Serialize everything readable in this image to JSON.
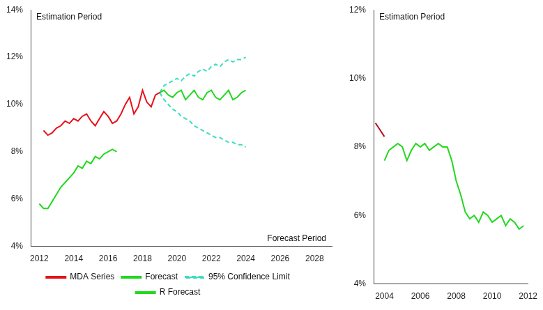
{
  "chart_data": [
    {
      "type": "line",
      "annotations": [
        "Estimation Period",
        "Forecast Period"
      ],
      "xlim": [
        2011.5,
        2029
      ],
      "xticks": [
        2012,
        2014,
        2016,
        2018,
        2020,
        2022,
        2024,
        2026,
        2028
      ],
      "ylim": [
        4,
        14
      ],
      "yticks": [
        {
          "value": 4,
          "label": "4%"
        },
        {
          "value": 6,
          "label": "6%"
        },
        {
          "value": 8,
          "label": "8%"
        },
        {
          "value": 10,
          "label": "10%"
        },
        {
          "value": 12,
          "label": "12%"
        },
        {
          "value": 14,
          "label": "14%"
        }
      ],
      "grid": false,
      "legend": "bottom",
      "series": [
        {
          "name": "MDA Series",
          "color": "#e8101a",
          "line_style": "solid",
          "x": [
            2012.25,
            2012.5,
            2012.75,
            2013,
            2013.25,
            2013.5,
            2013.75,
            2014,
            2014.25,
            2014.5,
            2014.75,
            2015,
            2015.25,
            2015.5,
            2015.75,
            2016,
            2016.25,
            2016.5,
            2016.75,
            2017,
            2017.25,
            2017.5,
            2017.75,
            2018,
            2018.25,
            2018.5,
            2018.75,
            2019
          ],
          "values": [
            8.9,
            8.7,
            8.8,
            9.0,
            9.1,
            9.3,
            9.2,
            9.4,
            9.3,
            9.5,
            9.6,
            9.3,
            9.1,
            9.4,
            9.7,
            9.5,
            9.2,
            9.3,
            9.6,
            10.0,
            10.3,
            9.6,
            9.9,
            10.6,
            10.1,
            9.9,
            10.4,
            10.5
          ]
        },
        {
          "name": "Forecast",
          "color": "#22d81e",
          "line_style": "solid",
          "x": [
            2019,
            2019.25,
            2019.5,
            2019.75,
            2020,
            2020.25,
            2020.5,
            2020.75,
            2021,
            2021.25,
            2021.5,
            2021.75,
            2022,
            2022.25,
            2022.5,
            2022.75,
            2023,
            2023.25,
            2023.5,
            2023.75,
            2024
          ],
          "values": [
            10.5,
            10.6,
            10.4,
            10.3,
            10.5,
            10.6,
            10.2,
            10.4,
            10.6,
            10.3,
            10.2,
            10.5,
            10.6,
            10.3,
            10.2,
            10.4,
            10.6,
            10.2,
            10.3,
            10.5,
            10.6
          ]
        },
        {
          "name": "95% Confidence Limit",
          "color": "#3fdcc0",
          "line_style": "dashed",
          "x": [
            2019,
            2019.25,
            2019.5,
            2019.75,
            2020,
            2020.25,
            2020.5,
            2020.75,
            2021,
            2021.25,
            2021.5,
            2021.75,
            2022,
            2022.25,
            2022.5,
            2022.75,
            2023,
            2023.25,
            2023.5,
            2023.75,
            2024
          ],
          "values": [
            10.5,
            10.8,
            10.9,
            11.0,
            11.1,
            11.0,
            11.2,
            11.3,
            11.2,
            11.4,
            11.5,
            11.4,
            11.6,
            11.7,
            11.6,
            11.8,
            11.9,
            11.8,
            11.9,
            11.9,
            12.0
          ]
        },
        {
          "color": "#3fdcc0",
          "line_style": "dashed",
          "x": [
            2019,
            2019.25,
            2019.5,
            2019.75,
            2020,
            2020.25,
            2020.5,
            2020.75,
            2021,
            2021.25,
            2021.5,
            2021.75,
            2022,
            2022.25,
            2022.5,
            2022.75,
            2023,
            2023.25,
            2023.5,
            2023.75,
            2024
          ],
          "values": [
            10.5,
            10.2,
            10.0,
            9.8,
            9.7,
            9.5,
            9.4,
            9.3,
            9.1,
            9.0,
            8.9,
            8.8,
            8.7,
            8.6,
            8.6,
            8.5,
            8.4,
            8.4,
            8.3,
            8.3,
            8.2
          ]
        },
        {
          "name": "R Forecast",
          "color": "#22d81e",
          "line_style": "solid",
          "x": [
            2012,
            2012.25,
            2012.5,
            2012.75,
            2013,
            2013.25,
            2013.5,
            2013.75,
            2014,
            2014.25,
            2014.5,
            2014.75,
            2015,
            2015.25,
            2015.5,
            2015.75,
            2016,
            2016.25,
            2016.5
          ],
          "values": [
            5.8,
            5.6,
            5.6,
            5.9,
            6.2,
            6.5,
            6.7,
            6.9,
            7.1,
            7.4,
            7.3,
            7.6,
            7.5,
            7.8,
            7.7,
            7.9,
            8.0,
            8.1,
            8.0
          ]
        }
      ]
    },
    {
      "type": "line",
      "annotations": [
        "Estimation Period"
      ],
      "xlim": [
        2003.4,
        2012
      ],
      "xticks": [
        2004,
        2006,
        2008,
        2010,
        2012
      ],
      "ylim": [
        4,
        12
      ],
      "yticks": [
        {
          "value": 4,
          "label": "4%"
        },
        {
          "value": 6,
          "label": "6%"
        },
        {
          "value": 8,
          "label": "8%"
        },
        {
          "value": 10,
          "label": "10%"
        },
        {
          "value": 12,
          "label": "12%"
        }
      ],
      "grid": false,
      "series": [
        {
          "color": "#22d81e",
          "line_style": "solid",
          "x": [
            2004,
            2004.25,
            2004.5,
            2004.75,
            2005,
            2005.25,
            2005.5,
            2005.75,
            2006,
            2006.25,
            2006.5,
            2006.75,
            2007,
            2007.25,
            2007.5,
            2007.75,
            2008,
            2008.25,
            2008.5,
            2008.75,
            2009,
            2009.25,
            2009.5,
            2009.75,
            2010,
            2010.25,
            2010.5,
            2010.75,
            2011,
            2011.25,
            2011.5,
            2011.75
          ],
          "values": [
            7.6,
            7.9,
            8.0,
            8.1,
            8.0,
            7.6,
            7.9,
            8.1,
            8.0,
            8.1,
            7.9,
            8.0,
            8.1,
            8.0,
            8.0,
            7.6,
            7.0,
            6.6,
            6.1,
            5.9,
            6.0,
            5.8,
            6.1,
            6.0,
            5.8,
            5.9,
            6.0,
            5.7,
            5.9,
            5.8,
            5.6,
            5.7
          ]
        },
        {
          "color": "#b0101a",
          "line_style": "solid",
          "x": [
            2003.5,
            2003.75,
            2004
          ],
          "values": [
            8.7,
            8.5,
            8.3
          ]
        }
      ]
    }
  ]
}
